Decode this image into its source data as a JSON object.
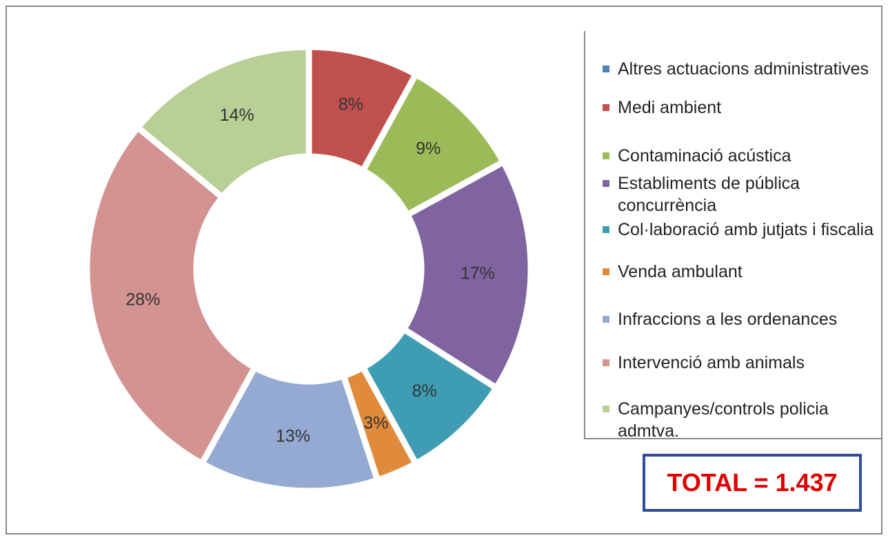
{
  "chart_data": {
    "type": "donut",
    "categories": [
      "Altres actuacions administratives",
      "Medi ambient",
      "Contaminació acústica",
      "Establiments de pública concurrència",
      "Col·laboració amb jutjats i fiscalia",
      "Venda ambulant",
      "Infraccions a les ordenances",
      "Intervenció amb animals",
      "Campanyes/controls policia admtva."
    ],
    "values": [
      0,
      8,
      9,
      17,
      8,
      3,
      13,
      28,
      14
    ],
    "value_labels": [
      "0%",
      "8%",
      "9%",
      "17%",
      "8%",
      "3%",
      "13%",
      "28%",
      "14%"
    ],
    "colors": [
      "#4f81bd",
      "#c0504d",
      "#9bbb59",
      "#8064a2",
      "#3f9db3",
      "#e08a3c",
      "#95aad3",
      "#d39391",
      "#b8cf96"
    ],
    "annotation": "TOTAL = 1.437"
  }
}
